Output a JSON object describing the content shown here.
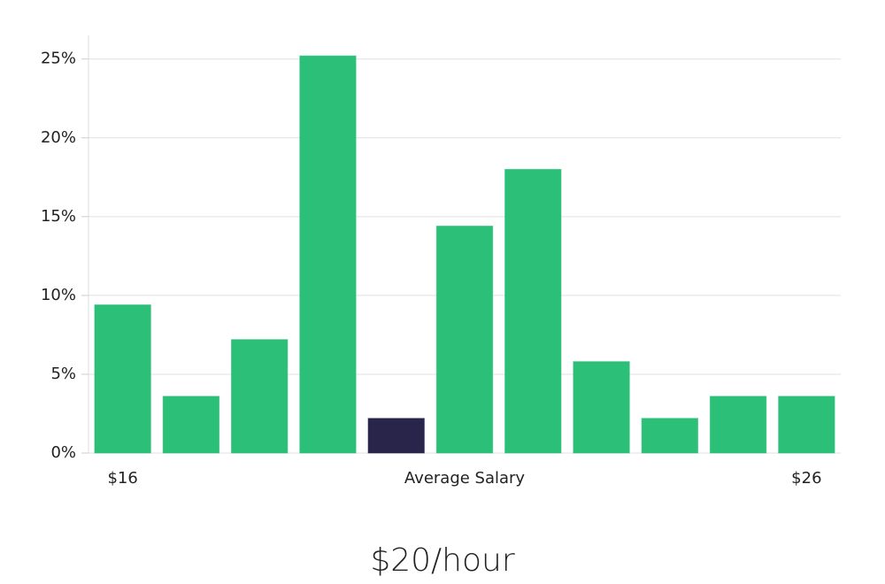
{
  "chart_data": {
    "type": "bar",
    "annotation": "$20/hour",
    "categories": [
      "$16",
      null,
      null,
      null,
      null,
      "Average Salary",
      null,
      null,
      null,
      null,
      "$26"
    ],
    "values": [
      9.4,
      3.6,
      7.2,
      25.2,
      2.2,
      14.4,
      18.0,
      5.8,
      2.2,
      3.6,
      3.6
    ],
    "colors": [
      "#2bbf78",
      "#2bbf78",
      "#2bbf78",
      "#2bbf78",
      "#29254a",
      "#2bbf78",
      "#2bbf78",
      "#2bbf78",
      "#2bbf78",
      "#2bbf78",
      "#2bbf78"
    ],
    "ylim": [
      0,
      26.5
    ],
    "yticks": [
      {
        "value": 0,
        "label": "0%"
      },
      {
        "value": 5,
        "label": "5%"
      },
      {
        "value": 10,
        "label": "10%"
      },
      {
        "value": 15,
        "label": "15%"
      },
      {
        "value": 20,
        "label": "20%"
      },
      {
        "value": 25,
        "label": "25%"
      }
    ],
    "grid": true
  }
}
